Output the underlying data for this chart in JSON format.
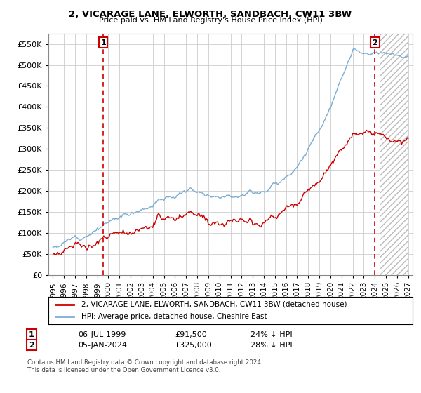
{
  "title": "2, VICARAGE LANE, ELWORTH, SANDBACH, CW11 3BW",
  "subtitle": "Price paid vs. HM Land Registry's House Price Index (HPI)",
  "legend_property": "2, VICARAGE LANE, ELWORTH, SANDBACH, CW11 3BW (detached house)",
  "legend_hpi": "HPI: Average price, detached house, Cheshire East",
  "annotation1_date": "06-JUL-1999",
  "annotation1_price": "£91,500",
  "annotation1_hpi": "24% ↓ HPI",
  "annotation2_date": "05-JAN-2024",
  "annotation2_price": "£325,000",
  "annotation2_hpi": "28% ↓ HPI",
  "footnote": "Contains HM Land Registry data © Crown copyright and database right 2024.\nThis data is licensed under the Open Government Licence v3.0.",
  "property_color": "#cc0000",
  "hpi_color": "#7aadd4",
  "sale1_x": 1999.54,
  "sale1_y": 91500,
  "sale2_x": 2024.01,
  "sale2_y": 325000,
  "ylim": [
    0,
    575000
  ],
  "xlim": [
    1994.6,
    2027.4
  ],
  "yticks": [
    0,
    50000,
    100000,
    150000,
    200000,
    250000,
    300000,
    350000,
    400000,
    450000,
    500000,
    550000
  ],
  "xticks": [
    1995,
    1996,
    1997,
    1998,
    1999,
    2000,
    2001,
    2002,
    2003,
    2004,
    2005,
    2006,
    2007,
    2008,
    2009,
    2010,
    2011,
    2012,
    2013,
    2014,
    2015,
    2016,
    2017,
    2018,
    2019,
    2020,
    2021,
    2022,
    2023,
    2024,
    2025,
    2026,
    2027
  ],
  "hatch_start": 2024.5
}
